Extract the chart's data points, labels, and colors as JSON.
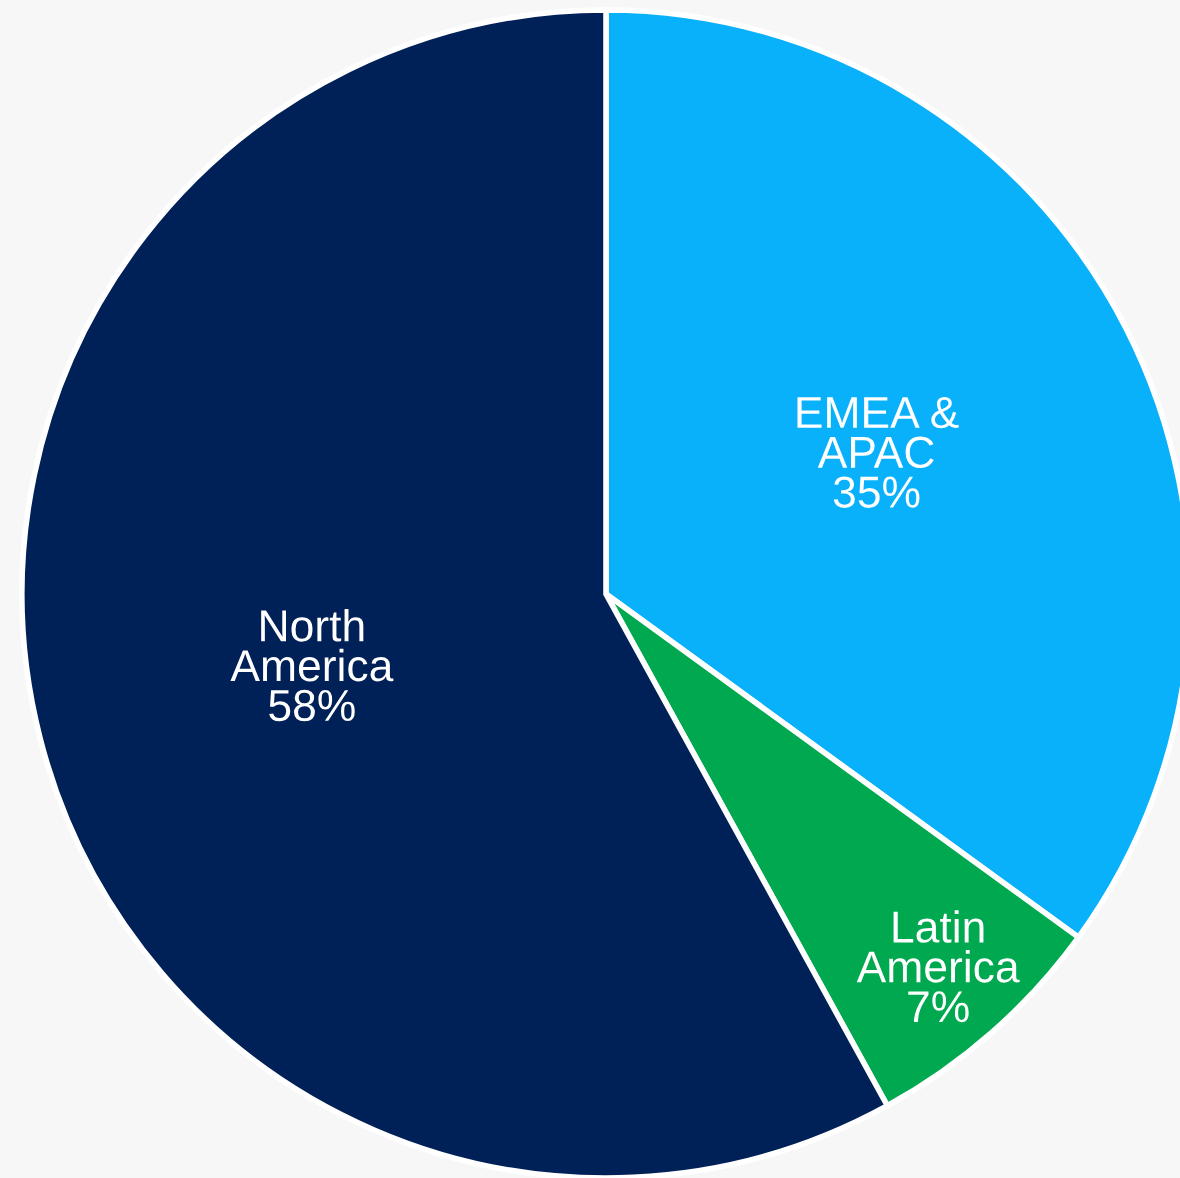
{
  "chart_data": {
    "type": "pie",
    "categories": [
      "EMEA &\nAPAC",
      "Latin\nAmerica",
      "North\nAmerica"
    ],
    "values": [
      35,
      7,
      58
    ],
    "value_labels": [
      "35%",
      "7%",
      "58%"
    ],
    "colors": [
      "#09b1fb",
      "#00a94f",
      "#002157"
    ]
  }
}
